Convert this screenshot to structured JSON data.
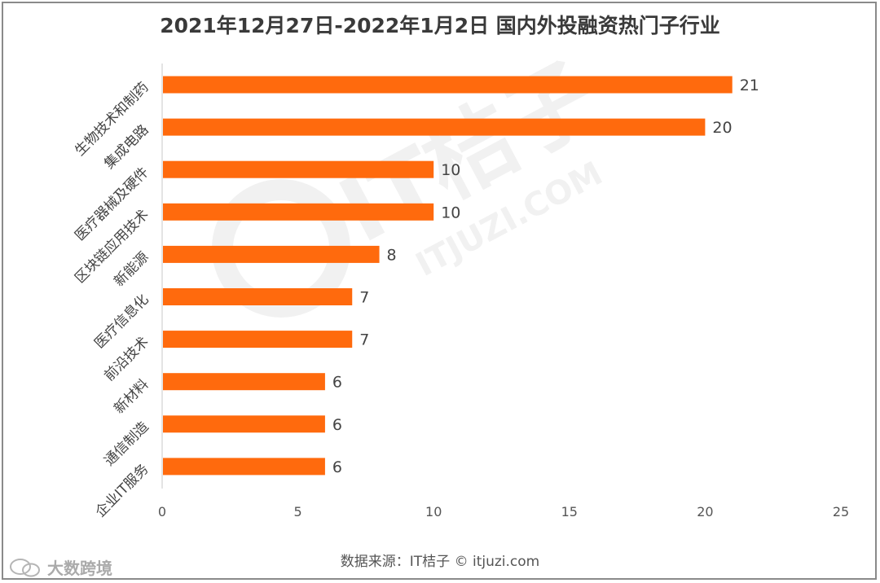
{
  "colors": {
    "bar": "#ff6a0d",
    "axis": "#c8c8c8",
    "text": "#444444",
    "watermark": "#f3f3f3"
  },
  "watermark": {
    "brand": "IT桔子",
    "url": "ITJUZI.COM"
  },
  "footer": {
    "source": "数据来源：IT桔子 © itjuzi.com",
    "brand": "大数跨境"
  },
  "chart_data": {
    "type": "bar",
    "orientation": "horizontal",
    "title": "2021年12月27日-2022年1月2日 国内外投融资热门子行业",
    "categories": [
      "生物技术和制药",
      "集成电路",
      "医疗器械及硬件",
      "区块链应用技术",
      "新能源",
      "医疗信息化",
      "前沿技术",
      "新材料",
      "通信制造",
      "企业IT服务"
    ],
    "values": [
      21,
      20,
      10,
      10,
      8,
      7,
      7,
      6,
      6,
      6
    ],
    "data_labels": [
      "21",
      "20",
      "10",
      "10",
      "8",
      "7",
      "7",
      "6",
      "6",
      "6"
    ],
    "xlim": [
      0,
      25
    ],
    "xticks": [
      "0",
      "5",
      "10",
      "15",
      "20",
      "25"
    ],
    "xlabel": "",
    "ylabel": "",
    "grid": false,
    "legend": "none"
  }
}
